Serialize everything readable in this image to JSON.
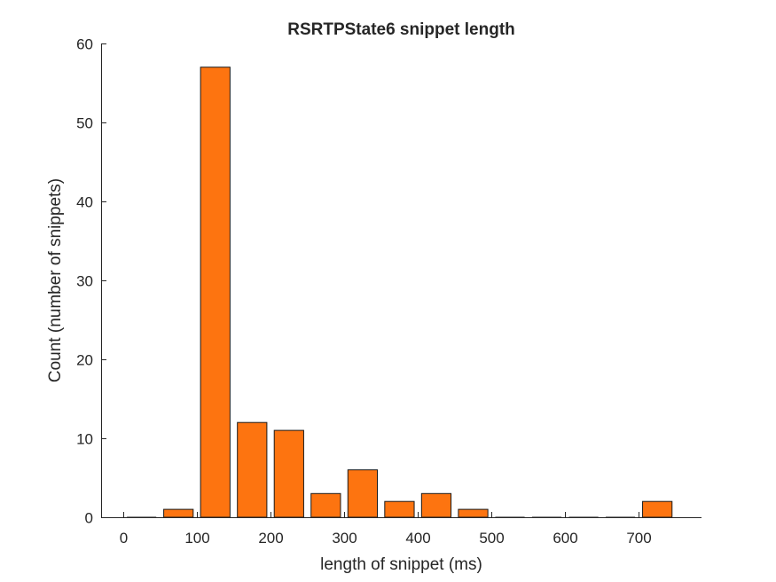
{
  "chart_data": {
    "type": "bar",
    "title": "RSRTPState6 snippet length",
    "xlabel": "length of snippet (ms)",
    "ylabel": "Count (number of snippets)",
    "bin_width": 50,
    "bar_fraction": 0.8,
    "bin_centers": [
      25,
      75,
      125,
      175,
      225,
      275,
      325,
      375,
      425,
      475,
      525,
      575,
      625,
      675,
      725
    ],
    "values": [
      0,
      1,
      57,
      12,
      11,
      3,
      6,
      2,
      3,
      1,
      0,
      0,
      0,
      0,
      2
    ],
    "xlim": [
      -30,
      785
    ],
    "ylim": [
      0,
      60
    ],
    "xticks": [
      0,
      100,
      200,
      300,
      400,
      500,
      600,
      700
    ],
    "yticks": [
      0,
      10,
      20,
      30,
      40,
      50,
      60
    ],
    "bar_color": "#fd7410",
    "grid": false
  }
}
